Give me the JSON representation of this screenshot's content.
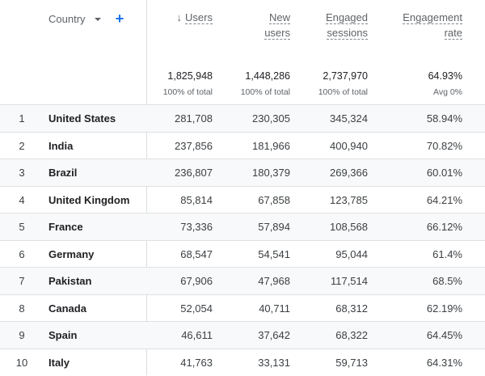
{
  "header": {
    "dimension": "Country",
    "columns": [
      {
        "line1": "Users",
        "line2": ""
      },
      {
        "line1": "New",
        "line2": "users"
      },
      {
        "line1": "Engaged",
        "line2": "sessions"
      },
      {
        "line1": "Engagement",
        "line2": "rate"
      }
    ]
  },
  "totals": {
    "users": {
      "value": "1,825,948",
      "sub": "100% of total"
    },
    "new_users": {
      "value": "1,448,286",
      "sub": "100% of total"
    },
    "engaged_sessions": {
      "value": "2,737,970",
      "sub": "100% of total"
    },
    "engagement_rate": {
      "value": "64.93%",
      "sub": "Avg 0%"
    }
  },
  "rows": [
    {
      "index": "1",
      "country": "United States",
      "users": "281,708",
      "new_users": "230,305",
      "engaged_sessions": "345,324",
      "engagement_rate": "58.94%"
    },
    {
      "index": "2",
      "country": "India",
      "users": "237,856",
      "new_users": "181,966",
      "engaged_sessions": "400,940",
      "engagement_rate": "70.82%"
    },
    {
      "index": "3",
      "country": "Brazil",
      "users": "236,807",
      "new_users": "180,379",
      "engaged_sessions": "269,366",
      "engagement_rate": "60.01%"
    },
    {
      "index": "4",
      "country": "United Kingdom",
      "users": "85,814",
      "new_users": "67,858",
      "engaged_sessions": "123,785",
      "engagement_rate": "64.21%"
    },
    {
      "index": "5",
      "country": "France",
      "users": "73,336",
      "new_users": "57,894",
      "engaged_sessions": "108,568",
      "engagement_rate": "66.12%"
    },
    {
      "index": "6",
      "country": "Germany",
      "users": "68,547",
      "new_users": "54,541",
      "engaged_sessions": "95,044",
      "engagement_rate": "61.4%"
    },
    {
      "index": "7",
      "country": "Pakistan",
      "users": "67,906",
      "new_users": "47,968",
      "engaged_sessions": "117,514",
      "engagement_rate": "68.5%"
    },
    {
      "index": "8",
      "country": "Canada",
      "users": "52,054",
      "new_users": "40,711",
      "engaged_sessions": "68,312",
      "engagement_rate": "62.19%"
    },
    {
      "index": "9",
      "country": "Spain",
      "users": "46,611",
      "new_users": "37,642",
      "engaged_sessions": "68,322",
      "engagement_rate": "64.45%"
    },
    {
      "index": "10",
      "country": "Italy",
      "users": "41,763",
      "new_users": "33,131",
      "engaged_sessions": "59,713",
      "engagement_rate": "64.31%"
    }
  ],
  "icons": {
    "sort": "arrow-down-icon",
    "dropdown": "caret-down-icon",
    "add": "plus-icon"
  },
  "colors": {
    "accent": "#1a73e8",
    "border": "#dadce0",
    "row_shade": "#f8f9fa"
  }
}
